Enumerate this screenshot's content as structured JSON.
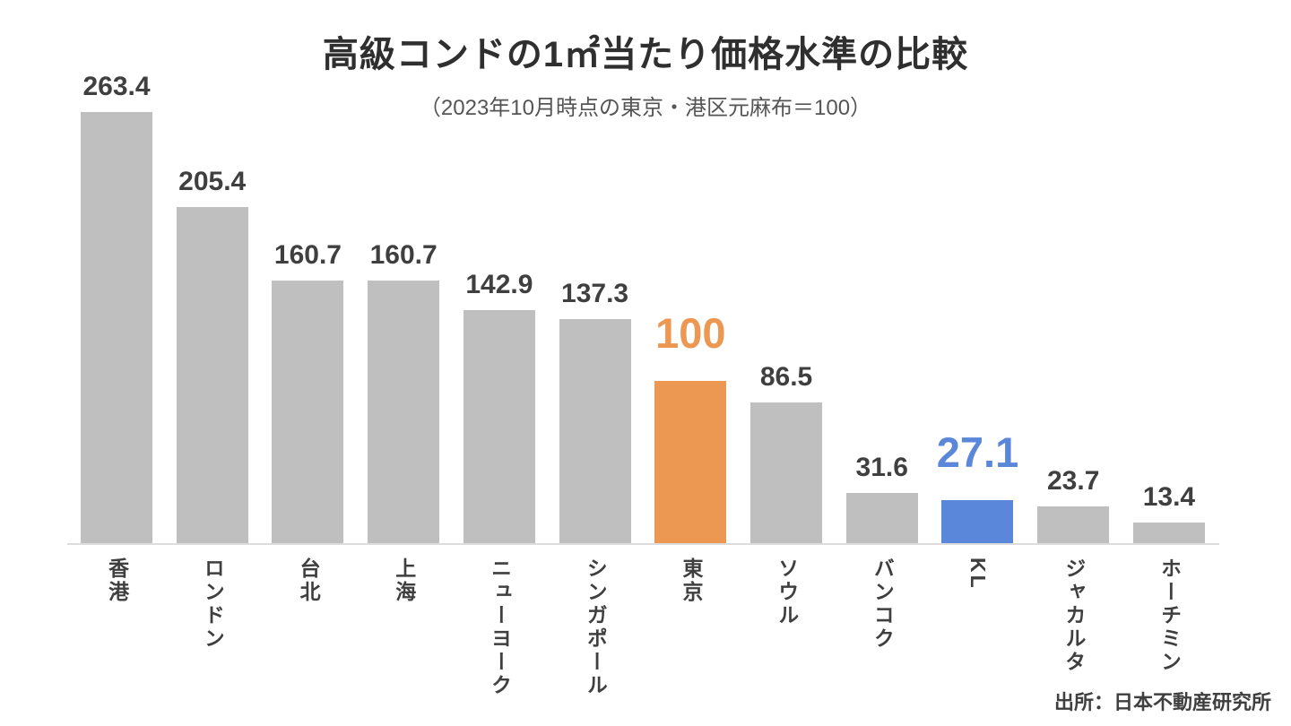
{
  "page": {
    "background": "#ffffff"
  },
  "header": {
    "title": "高級コンドの1㎡当たり価格水準の比較",
    "subtitle": "（2023年10月時点の東京・港区元麻布＝100）"
  },
  "footer": {
    "source": "出所：日本不動産研究所"
  },
  "chart_data": {
    "type": "bar",
    "title": "高級コンドの1㎡当たり価格水準の比較",
    "subtitle": "（2023年10月時点の東京・港区元麻布＝100）",
    "source": "出所：日本不動産研究所",
    "categories": [
      "香港",
      "ロンドン",
      "台北",
      "上海",
      "ニューヨーク",
      "シンガポール",
      "東京",
      "ソウル",
      "バンコク",
      "KL",
      "ジャカルタ",
      "ホーチミン"
    ],
    "values": [
      263.4,
      205.4,
      160.7,
      160.7,
      142.9,
      137.3,
      100,
      86.5,
      31.6,
      27.1,
      23.7,
      13.4
    ],
    "value_labels": [
      "263.4",
      "205.4",
      "160.7",
      "160.7",
      "142.9",
      "137.3",
      "100",
      "86.5",
      "31.6",
      "27.1",
      "23.7",
      "13.4"
    ],
    "bar_colors": [
      "#BFBFBF",
      "#BFBFBF",
      "#BFBFBF",
      "#BFBFBF",
      "#BFBFBF",
      "#BFBFBF",
      "#EC9853",
      "#BFBFBF",
      "#BFBFBF",
      "#5B87DB",
      "#BFBFBF",
      "#BFBFBF"
    ],
    "label_styles": [
      "default",
      "default",
      "default",
      "default",
      "default",
      "default",
      "large-orange",
      "default",
      "default",
      "large-blue",
      "default",
      "default"
    ],
    "colors": {
      "bar_default": "#BFBFBF",
      "bar_tokyo_orange": "#EC9853",
      "bar_kl_blue": "#5B87DB",
      "value_label": "#3F3F3F",
      "axis_line": "#DCDCDC"
    },
    "ylim": [
      0,
      280
    ],
    "grid": false,
    "legend": false,
    "baseline_value_of_index": "東京 = 100"
  }
}
